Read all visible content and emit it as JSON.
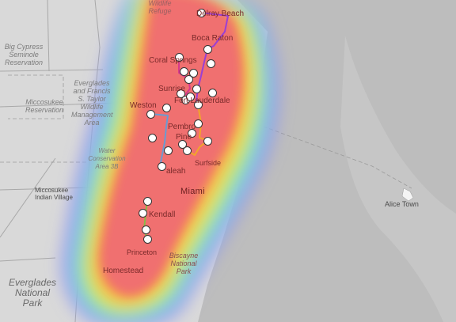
{
  "map": {
    "colors": {
      "land": "#d9d9d9",
      "water": "#bdbdbd",
      "roads": "#a8a8a8",
      "heat_core": "#f07070",
      "heat_orange": "#f6a04a",
      "heat_yellow": "#eef05a",
      "heat_green": "#8fe076",
      "heat_cyan": "#7fd8e6",
      "heat_blue": "#8f8ff0"
    },
    "labels": {
      "delray_beach": "Delray Beach",
      "boca_raton": "Boca Raton",
      "coral_springs": "Coral Springs",
      "sunrise": "Sunrise",
      "fort_lauderdale": "Fort Lauderdale",
      "weston": "Weston",
      "pembroke": "Pembro",
      "pines": "Pine",
      "surfside": "Surfside",
      "hialeah": "aleah",
      "miami": "Miami",
      "kendall": "Kendall",
      "princeton": "Princeton",
      "homestead": "Homestead",
      "biscayne": "Biscayne National Park",
      "refuge": "Wildlife Refuge",
      "big_cypress": "Big Cypress Seminole Reservation",
      "everglades_taylor": "Everglades and Francis S. Taylor Wildlife Management Area",
      "miccosukee_res": "Miccosukee Reservation",
      "wca": "Water Conservation Area 3B",
      "miccosukee_village": "Miccosukee Indian Village",
      "everglades_np": "Everglades National Park",
      "alice_town": "Alice Town"
    },
    "lines": [
      {
        "name": "purple",
        "color": "#9b3fd4"
      },
      {
        "name": "magenta",
        "color": "#d63a8c"
      },
      {
        "name": "orange",
        "color": "#f2a52a"
      },
      {
        "name": "blue",
        "color": "#6a9bd1"
      },
      {
        "name": "green",
        "color": "#8ab948"
      }
    ],
    "markers": [
      {
        "name": "marker-delray"
      },
      {
        "name": "marker-boca"
      },
      {
        "name": "marker-boca-south"
      },
      {
        "name": "marker-coral-springs-1"
      },
      {
        "name": "marker-coral-springs-2"
      },
      {
        "name": "marker-coral-springs-3"
      },
      {
        "name": "marker-coral-springs-4"
      },
      {
        "name": "marker-coral-springs-5"
      },
      {
        "name": "marker-sunrise-1"
      },
      {
        "name": "marker-sunrise-2"
      },
      {
        "name": "marker-fort-lauderdale-1"
      },
      {
        "name": "marker-fort-lauderdale-2"
      },
      {
        "name": "marker-fort-lauderdale-3"
      },
      {
        "name": "marker-weston-1"
      },
      {
        "name": "marker-weston-2"
      },
      {
        "name": "marker-pembroke-1"
      },
      {
        "name": "marker-pembroke-2"
      },
      {
        "name": "marker-pines-1"
      },
      {
        "name": "marker-pines-2"
      },
      {
        "name": "marker-pines-3"
      },
      {
        "name": "marker-pines-4"
      },
      {
        "name": "marker-hialeah-1"
      },
      {
        "name": "marker-hialeah-2"
      },
      {
        "name": "marker-kendall-1"
      },
      {
        "name": "marker-kendall-2"
      },
      {
        "name": "marker-kendall-3"
      },
      {
        "name": "marker-homestead"
      }
    ]
  }
}
